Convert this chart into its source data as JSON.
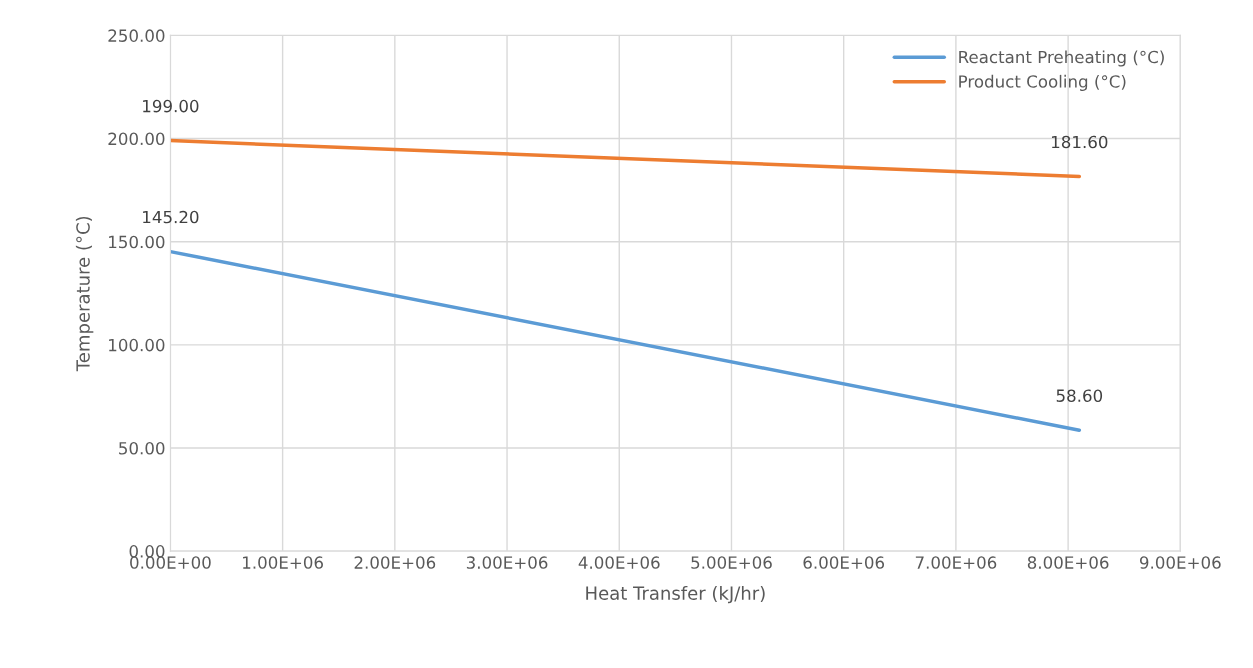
{
  "chart_data": {
    "type": "line",
    "xlabel": "Heat Transfer (kJ/hr)",
    "ylabel": "Temperature (°C)",
    "series": [
      {
        "name": "Reactant Preheating (°C)",
        "color": "#5b9bd5",
        "values": [
          145.2,
          58.6
        ],
        "value_labels": [
          "145.20",
          "58.60"
        ]
      },
      {
        "name": "Product Cooling (°C)",
        "color": "#ed7d31",
        "values": [
          199.0,
          181.6
        ],
        "value_labels": [
          "199.00",
          "181.60"
        ]
      }
    ],
    "x": [
      0,
      8100000
    ],
    "xlim": [
      0,
      9000000
    ],
    "xticks": [
      {
        "value": 0,
        "label": "0.00E+00"
      },
      {
        "value": 1000000,
        "label": "1.00E+06"
      },
      {
        "value": 2000000,
        "label": "2.00E+06"
      },
      {
        "value": 3000000,
        "label": "3.00E+06"
      },
      {
        "value": 4000000,
        "label": "4.00E+06"
      },
      {
        "value": 5000000,
        "label": "5.00E+06"
      },
      {
        "value": 6000000,
        "label": "6.00E+06"
      },
      {
        "value": 7000000,
        "label": "7.00E+06"
      },
      {
        "value": 8000000,
        "label": "8.00E+06"
      },
      {
        "value": 9000000,
        "label": "9.00E+06"
      }
    ],
    "ylim": [
      0,
      250
    ],
    "yticks": [
      {
        "value": 0,
        "label": "0.00"
      },
      {
        "value": 50,
        "label": "50.00"
      },
      {
        "value": 100,
        "label": "100.00"
      },
      {
        "value": 150,
        "label": "150.00"
      },
      {
        "value": 200,
        "label": "200.00"
      },
      {
        "value": 250,
        "label": "250.00"
      }
    ],
    "grid": true,
    "legend": "top right",
    "line_style": "solid",
    "marker": "none"
  }
}
